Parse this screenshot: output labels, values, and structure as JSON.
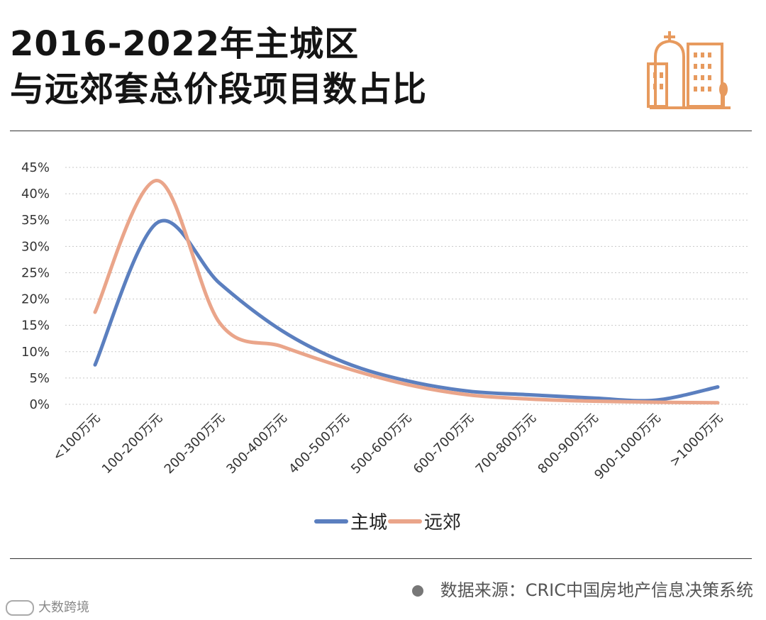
{
  "title": {
    "line1": "2016-2022年主城区",
    "line2": "与远郊套总价段项目数占比"
  },
  "icon": "city-buildings-icon",
  "colors": {
    "main_city": "#5b7fbf",
    "suburb": "#eaa58a",
    "icon": "#e79a5e",
    "grid": "#c8c8c8"
  },
  "chart_data": {
    "type": "line",
    "categories": [
      "<100万元",
      "100-200万元",
      "200-300万元",
      "300-400万元",
      "400-500万元",
      "500-600万元",
      "600-700万元",
      "700-800万元",
      "800-900万元",
      "900-1000万元",
      ">1000万元"
    ],
    "series": [
      {
        "name": "主城",
        "values": [
          7.5,
          34.5,
          23.0,
          14.0,
          8.0,
          4.5,
          2.5,
          1.8,
          1.2,
          0.8,
          3.3
        ]
      },
      {
        "name": "远郊",
        "values": [
          17.5,
          42.5,
          15.5,
          11.0,
          7.0,
          3.8,
          1.8,
          1.0,
          0.6,
          0.4,
          0.3
        ]
      }
    ],
    "yticks": [
      "0%",
      "5%",
      "10%",
      "15%",
      "20%",
      "25%",
      "30%",
      "35%",
      "40%",
      "45%"
    ],
    "ylim": [
      0,
      45
    ],
    "grid": true,
    "legend": "bottom"
  },
  "footer": {
    "source": "数据来源：CRIC中国房地产信息决策系统",
    "brand": "大数跨境"
  }
}
